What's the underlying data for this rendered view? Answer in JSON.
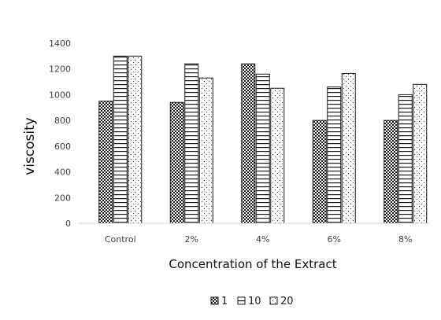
{
  "chart_data": {
    "type": "bar",
    "title": "",
    "xlabel": "Concentration of the Extract",
    "ylabel": "viscosity",
    "categories": [
      "Control",
      "2%",
      "4%",
      "6%",
      "8%"
    ],
    "ylim": [
      0,
      1400
    ],
    "yticks": [
      0,
      200,
      400,
      600,
      800,
      1000,
      1200,
      1400
    ],
    "grid": false,
    "legend_position": "bottom",
    "series": [
      {
        "name": "1",
        "pattern": "checker",
        "values": [
          950,
          940,
          1240,
          800,
          800
        ]
      },
      {
        "name": "10",
        "pattern": "hlines",
        "values": [
          1300,
          1240,
          1160,
          1060,
          1000
        ]
      },
      {
        "name": "20",
        "pattern": "dots",
        "values": [
          1300,
          1130,
          1050,
          1165,
          1080
        ]
      }
    ]
  }
}
